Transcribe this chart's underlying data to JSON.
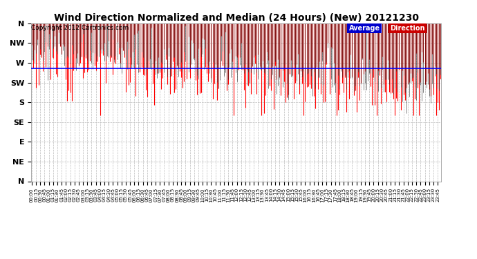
{
  "title": "Wind Direction Normalized and Median (24 Hours) (New) 20121230",
  "copyright": "Copyright 2012 Cartronics.com",
  "yticks": [
    360,
    315,
    270,
    225,
    180,
    135,
    90,
    45,
    0
  ],
  "ylabels": [
    "N",
    "NW",
    "W",
    "SW",
    "S",
    "SE",
    "E",
    "NE",
    "N"
  ],
  "ymin": 0,
  "ymax": 360,
  "average_direction": 258,
  "bar_color_red": "#ff0000",
  "bar_color_black": "#222222",
  "avg_line_color": "#0000ff",
  "background_color": "#ffffff",
  "title_fontsize": 10,
  "copyright_fontsize": 6.5,
  "legend_avg_bg": "#0000cc",
  "legend_dir_bg": "#cc0000",
  "legend_avg_text": "Average",
  "legend_dir_text": "Direction",
  "n_points": 288,
  "seed": 12
}
